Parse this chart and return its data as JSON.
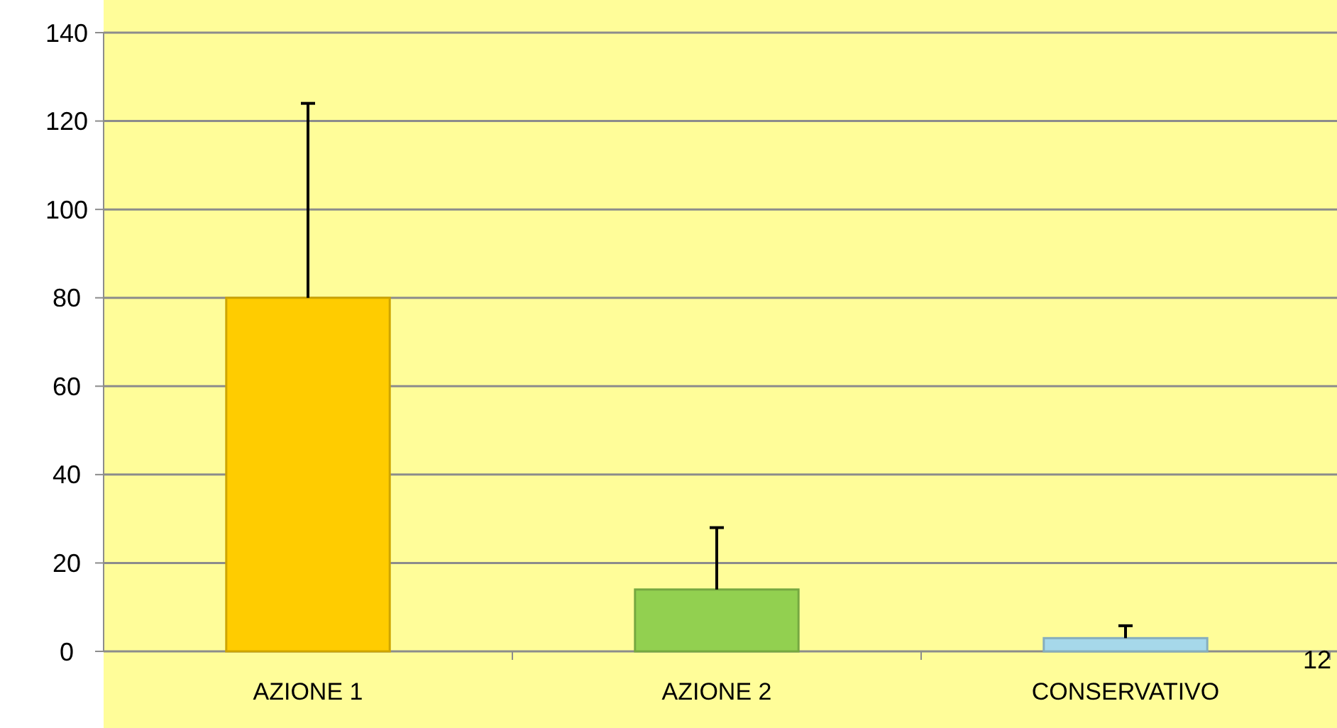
{
  "chart_data": {
    "type": "bar",
    "categories": [
      "AZIONE 1",
      "AZIONE 2",
      "CONSERVATIVO"
    ],
    "values": [
      80,
      14,
      3
    ],
    "colors": [
      "#ffcc00",
      "#92d050",
      "#a6d8ea"
    ],
    "errors": [
      [
        80,
        124
      ],
      [
        14,
        28
      ],
      [
        3,
        5.8
      ]
    ],
    "ylim": [
      0,
      140
    ],
    "yticks": [
      0,
      20,
      40,
      60,
      80,
      100,
      120,
      140
    ],
    "grid": "y",
    "annotations": [
      "12"
    ]
  }
}
